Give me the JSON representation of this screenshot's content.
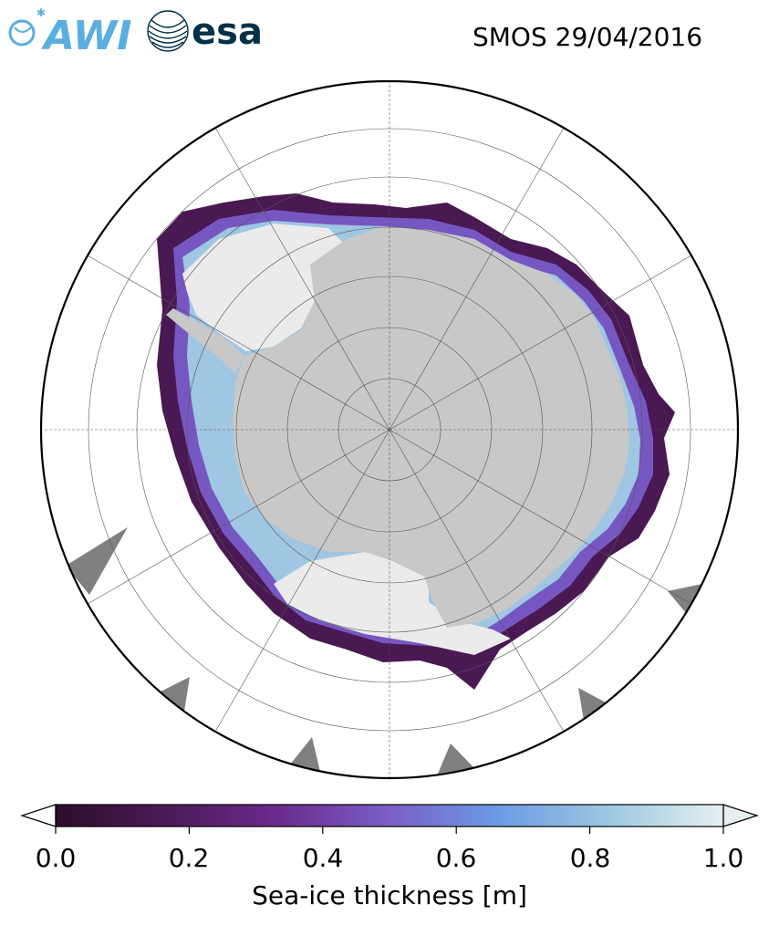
{
  "header": {
    "awi_logo": "AWI",
    "esa_logo": "esa",
    "title": "SMOS 29/04/2016"
  },
  "map": {
    "projection": "south-polar-stereographic",
    "land_color": "#c8c8c8",
    "ocean_color": "#ffffff",
    "missing_color": "#808080",
    "ice_shelf_color": "#ebebeb",
    "graticule": true
  },
  "colorbar": {
    "label": "Sea-ice thickness [m]",
    "ticks": [
      "0.0",
      "0.2",
      "0.4",
      "0.6",
      "0.8",
      "1.0"
    ],
    "tick_values": [
      0.0,
      0.2,
      0.4,
      0.6,
      0.8,
      1.0
    ],
    "range": [
      0.0,
      1.0
    ],
    "colormap": "dense",
    "colors": [
      "#2a0f2a",
      "#4b1a55",
      "#6a2a8a",
      "#7a5fc8",
      "#6b9ae4",
      "#9cc9e0",
      "#e6f0f0"
    ]
  }
}
